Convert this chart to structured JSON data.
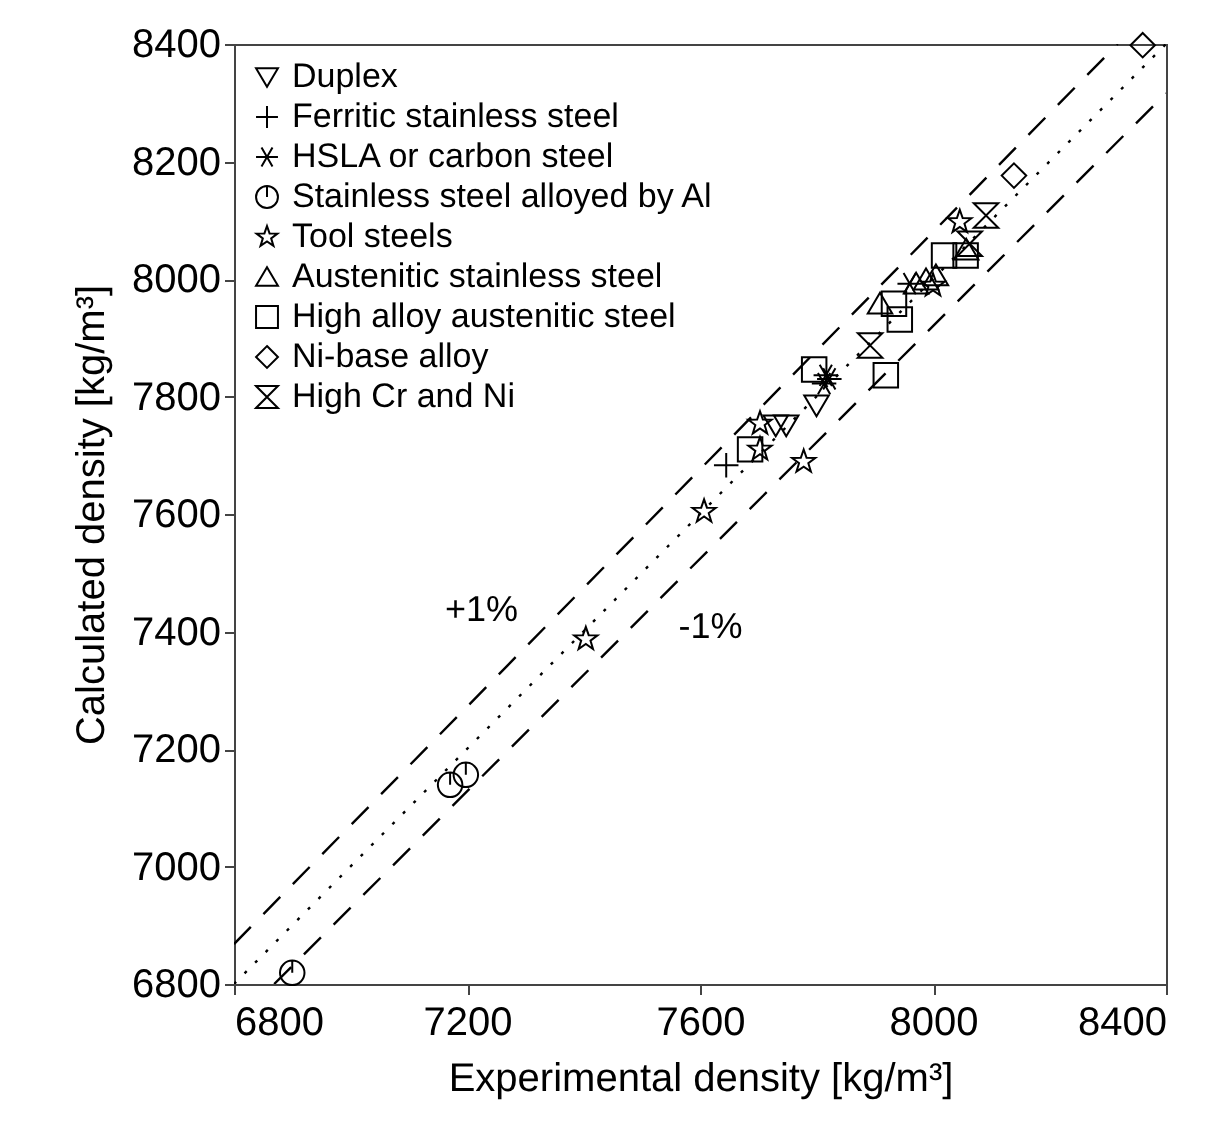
{
  "chart_data": {
    "type": "scatter",
    "xlabel": "Experimental density [kg/m³]",
    "ylabel": "Calculated density [kg/m³]",
    "xlim": [
      6800,
      8400
    ],
    "ylim": [
      6800,
      8400
    ],
    "xticks": [
      6800,
      7200,
      7600,
      8000,
      8400
    ],
    "yticks": [
      6800,
      7000,
      7200,
      7400,
      7600,
      7800,
      8000,
      8200,
      8400
    ],
    "grid": false,
    "legend": "top left",
    "series": [
      {
        "name": "Duplex",
        "color": "#000000",
        "marker": "triangle-down",
        "x": [
          7800,
          7748,
          7730
        ],
        "values": [
          7785,
          7751,
          7751
        ]
      },
      {
        "name": "Ferritic stainless steel",
        "color": "#000000",
        "marker": "cross",
        "x": [
          7645
        ],
        "values": [
          7683
        ]
      },
      {
        "name": "HSLA or carbon steel",
        "color": "#000000",
        "x": [
          7816,
          7813,
          7822,
          7960
        ],
        "values": [
          7836,
          7822,
          7830,
          7992
        ]
      },
      {
        "name": "Stainless steel alloyed by Al",
        "color": "#000000",
        "x": [
          6900,
          7171,
          7198
        ],
        "values": [
          6819,
          7139,
          7156
        ]
      },
      {
        "name": "Tool steels",
        "color": "#000000",
        "marker": "star",
        "x": [
          7404,
          7607,
          7703,
          7703,
          7778,
          8046,
          8000
        ],
        "values": [
          7387,
          7604,
          7754,
          7710,
          7689,
          8097,
          7989
        ]
      },
      {
        "name": "Austenitic stainless steel",
        "color": "#000000",
        "marker": "triangle",
        "x": [
          7909,
          7988,
          8005,
          7971,
          8057
        ],
        "values": [
          7958,
          7999,
          8006,
          7992,
          8050
        ]
      },
      {
        "name": "High alloy austenitic steel",
        "color": "#000000",
        "marker": "square",
        "x": [
          7919,
          7943,
          7796,
          7686,
          8019,
          8056,
          7933
        ],
        "values": [
          7836,
          7931,
          7846,
          7710,
          8040,
          8040,
          7958
        ]
      },
      {
        "name": "Ni-base alloy",
        "color": "#000000",
        "marker": "diamond",
        "x": [
          8360,
          8139
        ],
        "values": [
          8398,
          8176
        ]
      },
      {
        "name": "High Cr and Ni",
        "color": "#000000",
        "x": [
          8091,
          7892,
          8063
        ],
        "values": [
          8108,
          7887,
          8060
        ]
      },
      {
        "type": "line",
        "color": "#000000",
        "line_style": "dotted",
        "x": [
          6800,
          8400
        ],
        "values": [
          6800,
          8400
        ]
      },
      {
        "type": "line",
        "name": "+1%",
        "color": "#000000",
        "line_style": "dashed",
        "x": [
          6800,
          8317
        ],
        "values": [
          6868,
          8400
        ]
      },
      {
        "type": "line",
        "name": "-1%",
        "color": "#000000",
        "line_style": "dashed",
        "x": [
          6869,
          8400
        ],
        "values": [
          6800,
          8316
        ]
      }
    ]
  }
}
